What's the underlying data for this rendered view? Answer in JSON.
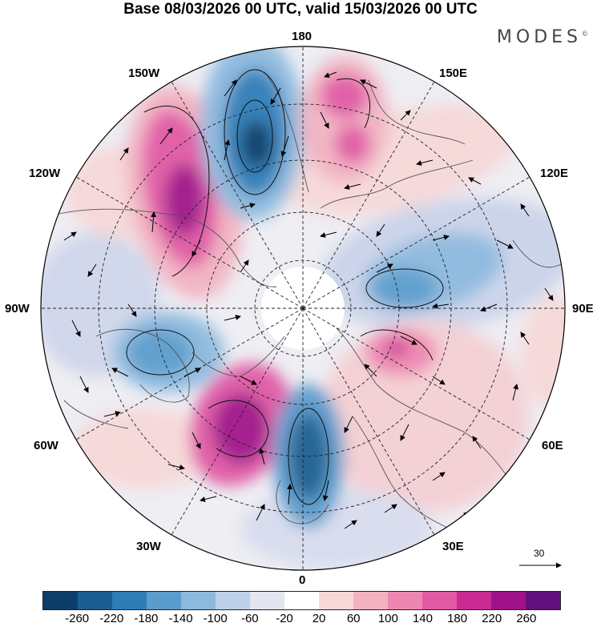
{
  "title": "Base 08/03/2026 00 UTC, valid 15/03/2026 00 UTC",
  "brand": "MODES",
  "brand_mark": "©",
  "longitude_labels": {
    "deg180": "180",
    "w150": "150W",
    "e150": "150E",
    "w120": "120W",
    "e120": "120E",
    "w90": "90W",
    "e90": "90E",
    "w60": "60W",
    "e60": "60E",
    "w30": "30W",
    "e30": "30E",
    "deg0": "0"
  },
  "reference_vector_label": "30",
  "colorbar": {
    "colors": [
      "#0d3e6a",
      "#1a5e93",
      "#2f7db7",
      "#5a9ccc",
      "#8db9de",
      "#bdd0e8",
      "#e3e6f1",
      "#ffffff",
      "#f6d8d8",
      "#f2b2c1",
      "#ee87b0",
      "#e05aa4",
      "#c92b93",
      "#a0128a",
      "#60107f"
    ],
    "ticks": [
      "-260",
      "-220",
      "-180",
      "-140",
      "-100",
      "-60",
      "-20",
      "20",
      "60",
      "100",
      "140",
      "180",
      "220",
      "260"
    ]
  }
}
